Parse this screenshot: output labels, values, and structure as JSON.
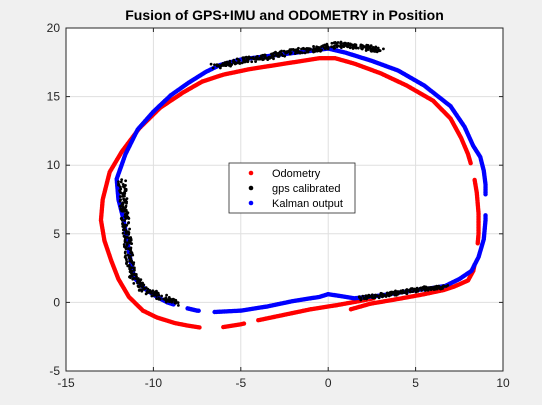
{
  "chart_data": {
    "type": "scatter",
    "title": "Fusion of GPS+IMU and ODOMETRY in Position",
    "xlabel": "",
    "ylabel": "",
    "xlim": [
      -15,
      10
    ],
    "ylim": [
      -5,
      20
    ],
    "x_ticks": [
      -15,
      -10,
      -5,
      0,
      5,
      10
    ],
    "y_ticks": [
      -5,
      0,
      5,
      10,
      15,
      20
    ],
    "x_tick_labels": [
      "-15",
      "-10",
      "-5",
      "0",
      "5",
      "10"
    ],
    "y_tick_labels": [
      "-5",
      "0",
      "5",
      "10",
      "15",
      "20"
    ],
    "grid": true,
    "legend": {
      "placement": "center",
      "entries": [
        "Odometry",
        "gps calibrated",
        "Kalman output"
      ]
    },
    "series": [
      {
        "name": "Odometry",
        "color": "#ff0000",
        "marker_size": 2.2,
        "polyline": [
          [
            1.3,
            -0.5
          ],
          [
            2.4,
            -0.1
          ],
          [
            4.0,
            0.25
          ],
          [
            5.5,
            0.6
          ],
          [
            6.6,
            0.9
          ],
          [
            7.2,
            1.15
          ],
          [
            8.0,
            1.6
          ],
          [
            8.3,
            2.3
          ],
          [
            8.5,
            3.5
          ],
          [
            8.6,
            5.0
          ],
          [
            8.6,
            6.5
          ],
          [
            8.5,
            8.0
          ],
          [
            8.3,
            9.5
          ],
          [
            8.0,
            10.8
          ],
          [
            7.6,
            12.0
          ],
          [
            7.0,
            13.4
          ],
          [
            6.0,
            14.7
          ],
          [
            4.5,
            15.8
          ],
          [
            3.0,
            16.7
          ],
          [
            1.5,
            17.4
          ],
          [
            0.4,
            17.8
          ],
          [
            -0.5,
            17.8
          ],
          [
            -1.5,
            17.6
          ],
          [
            -3.0,
            17.3
          ],
          [
            -4.5,
            17.0
          ],
          [
            -6.0,
            16.6
          ],
          [
            -7.2,
            16.1
          ],
          [
            -8.3,
            15.3
          ],
          [
            -9.6,
            14.2
          ],
          [
            -10.8,
            12.7
          ],
          [
            -11.8,
            11.0
          ],
          [
            -12.5,
            9.5
          ],
          [
            -12.9,
            7.5
          ],
          [
            -13.0,
            6.0
          ],
          [
            -12.8,
            4.5
          ],
          [
            -12.4,
            3.0
          ],
          [
            -12.0,
            1.7
          ],
          [
            -11.4,
            0.4
          ],
          [
            -10.6,
            -0.6
          ],
          [
            -9.8,
            -1.1
          ],
          [
            -8.8,
            -1.5
          ],
          [
            -8.0,
            -1.7
          ],
          [
            -7.0,
            -1.9
          ],
          [
            -6.0,
            -1.8
          ],
          [
            -5.0,
            -1.6
          ],
          [
            -4.0,
            -1.3
          ],
          [
            -2.5,
            -0.9
          ],
          [
            -1.0,
            -0.5
          ],
          [
            0.5,
            -0.2
          ],
          [
            1.8,
            0.1
          ],
          [
            2.6,
            0.3
          ]
        ],
        "gaps": [
          [
            8.4,
            2.8,
            8.5,
            4.2
          ],
          [
            8.4,
            9.0,
            8.2,
            10.0
          ],
          [
            -7.3,
            -1.9,
            -6.1,
            -1.8
          ],
          [
            -4.7,
            -1.5,
            -4.1,
            -1.3
          ]
        ]
      },
      {
        "name": "Kalman output",
        "color": "#0000ff",
        "marker_size": 2.2,
        "polyline": [
          [
            0.0,
            0.6
          ],
          [
            1.5,
            0.3
          ],
          [
            3.0,
            0.5
          ],
          [
            4.5,
            0.8
          ],
          [
            5.7,
            1.0
          ],
          [
            6.7,
            1.2
          ],
          [
            7.5,
            1.7
          ],
          [
            8.2,
            2.3
          ],
          [
            8.6,
            3.3
          ],
          [
            8.9,
            4.6
          ],
          [
            9.0,
            6.0
          ],
          [
            9.0,
            7.4
          ],
          [
            9.0,
            8.6
          ],
          [
            8.9,
            9.6
          ],
          [
            8.7,
            10.6
          ],
          [
            8.3,
            11.4
          ],
          [
            7.8,
            12.8
          ],
          [
            7.0,
            14.3
          ],
          [
            5.5,
            15.8
          ],
          [
            4.0,
            16.9
          ],
          [
            2.5,
            17.6
          ],
          [
            1.0,
            18.2
          ],
          [
            0.0,
            18.5
          ],
          [
            -1.2,
            18.3
          ],
          [
            -2.5,
            18.1
          ],
          [
            -3.8,
            17.9
          ],
          [
            -5.0,
            17.7
          ],
          [
            -6.2,
            17.3
          ],
          [
            -7.0,
            16.8
          ],
          [
            -8.0,
            16.0
          ],
          [
            -9.0,
            15.1
          ],
          [
            -10.0,
            13.9
          ],
          [
            -10.9,
            12.6
          ],
          [
            -11.6,
            10.8
          ],
          [
            -12.1,
            9.0
          ],
          [
            -12.0,
            7.5
          ],
          [
            -11.7,
            6.0
          ],
          [
            -11.5,
            4.5
          ],
          [
            -11.3,
            3.0
          ],
          [
            -11.1,
            1.8
          ],
          [
            -10.5,
            1.0
          ],
          [
            -9.8,
            0.4
          ],
          [
            -9.2,
            0.0
          ],
          [
            -8.5,
            -0.3
          ],
          [
            -7.5,
            -0.6
          ],
          [
            -6.5,
            -0.7
          ],
          [
            -5.0,
            -0.6
          ],
          [
            -3.5,
            -0.3
          ],
          [
            -2.0,
            0.1
          ],
          [
            -0.5,
            0.4
          ],
          [
            0.0,
            0.6
          ]
        ],
        "gaps": [
          [
            -8.8,
            -0.2,
            -8.1,
            -0.4
          ],
          [
            -7.3,
            -0.6,
            -6.6,
            -0.7
          ],
          [
            9.0,
            6.4,
            9.0,
            7.8
          ]
        ]
      },
      {
        "name": "gps calibrated",
        "color": "#000000",
        "marker_size": 1.4,
        "clusters": [
          {
            "polyline": [
              [
                -6.5,
                17.2
              ],
              [
                -5.0,
                17.6
              ],
              [
                -3.5,
                17.9
              ],
              [
                -2.0,
                18.3
              ],
              [
                -0.5,
                18.5
              ],
              [
                0.5,
                18.8
              ],
              [
                1.5,
                18.7
              ],
              [
                2.5,
                18.5
              ],
              [
                3.0,
                18.3
              ]
            ],
            "jitter": 0.2
          },
          {
            "polyline": [
              [
                -11.8,
                8.8
              ],
              [
                -11.7,
                7.0
              ],
              [
                -11.5,
                5.0
              ],
              [
                -11.4,
                3.5
              ],
              [
                -11.2,
                2.0
              ],
              [
                -10.6,
                1.0
              ],
              [
                -9.8,
                0.5
              ],
              [
                -9.2,
                0.2
              ],
              [
                -8.6,
                0.0
              ]
            ],
            "jitter": 0.22
          },
          {
            "polyline": [
              [
                1.8,
                0.3
              ],
              [
                3.0,
                0.5
              ],
              [
                4.5,
                0.8
              ],
              [
                5.5,
                1.0
              ],
              [
                6.7,
                1.1
              ]
            ],
            "jitter": 0.15
          }
        ]
      }
    ]
  }
}
